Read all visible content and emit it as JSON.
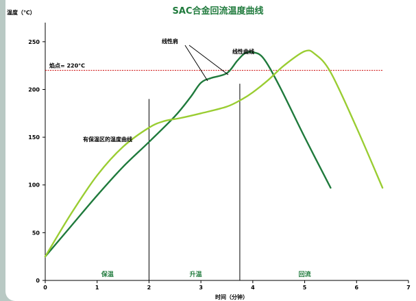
{
  "chart_data": {
    "type": "line",
    "title": "SAC合金回流温度曲线",
    "ylabel": "温度（℃）",
    "xlabel": "时间（分钟）",
    "xlim": [
      0,
      7
    ],
    "ylim": [
      0,
      270
    ],
    "x_ticks": [
      0,
      1,
      2,
      3,
      4,
      5,
      6,
      7
    ],
    "y_ticks": [
      0,
      50,
      100,
      150,
      200,
      250
    ],
    "grid": false,
    "colors": {
      "dark": "#1f7a3c",
      "light": "#9acd32",
      "ref": "#cc0000"
    },
    "series": [
      {
        "key": "dark",
        "x": [
          0,
          0.5,
          1,
          1.5,
          2,
          2.5,
          2.8,
          3,
          3.2,
          3.5,
          3.7,
          3.85,
          4,
          4.2,
          4.5,
          5,
          5.5
        ],
        "y": [
          25,
          57,
          89,
          119,
          145,
          172,
          192,
          207,
          212,
          217,
          230,
          238,
          239,
          233,
          205,
          150,
          97
        ]
      },
      {
        "key": "light",
        "x": [
          0,
          0.5,
          1,
          1.5,
          2,
          2.3,
          2.6,
          3,
          3.5,
          3.8,
          4,
          4.3,
          4.6,
          5,
          5.2,
          5.5,
          6,
          6.5
        ],
        "y": [
          25,
          70,
          110,
          140,
          160,
          167,
          170,
          175,
          182,
          190,
          197,
          210,
          225,
          240,
          237,
          218,
          160,
          97
        ]
      }
    ],
    "reference_line": {
      "y": 220,
      "label": "焰点= 220°C"
    },
    "dividers": [
      {
        "x": 2,
        "ytop": 190
      },
      {
        "x": 3.75,
        "ytop": 206
      }
    ],
    "zones": [
      {
        "label": "保温",
        "x": 1.2
      },
      {
        "label": "升温",
        "x": 2.9
      },
      {
        "label": "回流",
        "x": 5.0
      }
    ],
    "annotations": {
      "shoulder": "线性肩",
      "linear_curve": "线性曲线",
      "soak_curve": "有保温区的温度曲线"
    }
  }
}
